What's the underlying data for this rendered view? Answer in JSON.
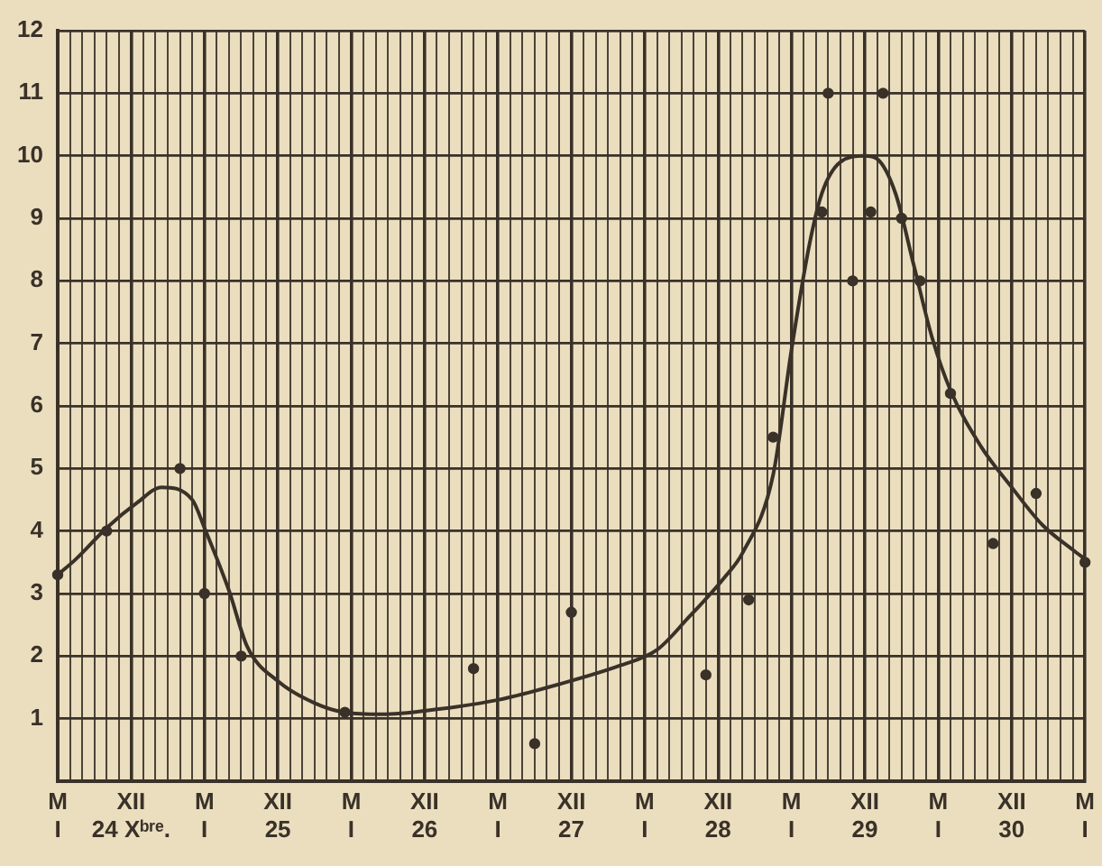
{
  "chart_data": {
    "type": "scatter",
    "series": [
      {
        "type": "scatter",
        "color": "#3a3128",
        "x": [
          "1924-06",
          "1924-10",
          "1925-04",
          "1925-06",
          "1925-09",
          "1926-05-16",
          "1927-04",
          "1927-09",
          "1927-12",
          "1928-11",
          "1929-02-15",
          "1929-04-16",
          "1929-08-16",
          "1929-09",
          "1929-11",
          "1929-12-16",
          "1930-01-16",
          "1930-03",
          "1930-04-16",
          "1930-07",
          "1930-10-16",
          "1931-02",
          "1931-06"
        ],
        "values": [
          3.3,
          4,
          5,
          3,
          2,
          1.1,
          1.8,
          0.6,
          2.7,
          1.7,
          2.9,
          5.5,
          9.1,
          11,
          8,
          9.1,
          11,
          9,
          8,
          6.2,
          3.8,
          4.6,
          3.5
        ]
      },
      {
        "type": "line",
        "marker": "none",
        "color": "#3a3128",
        "x": [
          "1924-06",
          "1924-07-16",
          "1924-10",
          "1924-12-16",
          "1925-02-15",
          "1925-05",
          "1925-06",
          "1925-08",
          "1925-09-16",
          "1925-12",
          "1926-03",
          "1926-05-16",
          "1926-08-16",
          "1927-01",
          "1927-06",
          "1927-11",
          "1928-04",
          "1928-07",
          "1928-09-16",
          "1928-12-16",
          "1929-02",
          "1929-04-16",
          "1929-06",
          "1929-07-16",
          "1929-08-16",
          "1929-10",
          "1929-12",
          "1930-01",
          "1930-02-15",
          "1930-04",
          "1930-05-16",
          "1930-07",
          "1930-09-16",
          "1930-12",
          "1931-02-15",
          "1931-05",
          "1931-06"
        ],
        "values": [
          3.3,
          3.55,
          4.05,
          4.45,
          4.7,
          4.5,
          4.05,
          3.05,
          2.15,
          1.6,
          1.25,
          1.1,
          1.07,
          1.15,
          1.3,
          1.55,
          1.85,
          2.1,
          2.6,
          3.25,
          3.65,
          4.9,
          6.9,
          8.6,
          9.4,
          9.9,
          10,
          9.95,
          9.4,
          8.25,
          7.1,
          6.25,
          5.35,
          4.7,
          4.1,
          3.7,
          3.55
        ]
      }
    ],
    "xlim": [
      "1924-06",
      "1931-06"
    ],
    "xticks": [
      {
        "value": "1924-06",
        "label": "M\nI"
      },
      {
        "value": "1924-07",
        "label": null
      },
      {
        "value": "1924-08",
        "label": null
      },
      {
        "value": "1924-09",
        "label": null
      },
      {
        "value": "1924-10",
        "label": null
      },
      {
        "value": "1924-11",
        "label": null
      },
      {
        "value": "1924-12",
        "label": "XII\n24 Xᵇʳᵉ."
      },
      {
        "value": "1925-01",
        "label": null
      },
      {
        "value": "1925-02",
        "label": null
      },
      {
        "value": "1925-03",
        "label": null
      },
      {
        "value": "1925-04",
        "label": null
      },
      {
        "value": "1925-05",
        "label": null
      },
      {
        "value": "1925-06",
        "label": "M\nI"
      },
      {
        "value": "1925-07",
        "label": null
      },
      {
        "value": "1925-08",
        "label": null
      },
      {
        "value": "1925-09",
        "label": null
      },
      {
        "value": "1925-10",
        "label": null
      },
      {
        "value": "1925-11",
        "label": null
      },
      {
        "value": "1925-12",
        "label": "XII\n25"
      },
      {
        "value": "1926-01",
        "label": null
      },
      {
        "value": "1926-02",
        "label": null
      },
      {
        "value": "1926-03",
        "label": null
      },
      {
        "value": "1926-04",
        "label": null
      },
      {
        "value": "1926-05",
        "label": null
      },
      {
        "value": "1926-06",
        "label": "M\nI"
      },
      {
        "value": "1926-07",
        "label": null
      },
      {
        "value": "1926-08",
        "label": null
      },
      {
        "value": "1926-09",
        "label": null
      },
      {
        "value": "1926-10",
        "label": null
      },
      {
        "value": "1926-11",
        "label": null
      },
      {
        "value": "1926-12",
        "label": "XII\n26"
      },
      {
        "value": "1927-01",
        "label": null
      },
      {
        "value": "1927-02",
        "label": null
      },
      {
        "value": "1927-03",
        "label": null
      },
      {
        "value": "1927-04",
        "label": null
      },
      {
        "value": "1927-05",
        "label": null
      },
      {
        "value": "1927-06",
        "label": "M\nI"
      },
      {
        "value": "1927-07",
        "label": null
      },
      {
        "value": "1927-08",
        "label": null
      },
      {
        "value": "1927-09",
        "label": null
      },
      {
        "value": "1927-10",
        "label": null
      },
      {
        "value": "1927-11",
        "label": null
      },
      {
        "value": "1927-12",
        "label": "XII\n27"
      },
      {
        "value": "1928-01",
        "label": null
      },
      {
        "value": "1928-02",
        "label": null
      },
      {
        "value": "1928-03",
        "label": null
      },
      {
        "value": "1928-04",
        "label": null
      },
      {
        "value": "1928-05",
        "label": null
      },
      {
        "value": "1928-06",
        "label": "M\nI"
      },
      {
        "value": "1928-07",
        "label": null
      },
      {
        "value": "1928-08",
        "label": null
      },
      {
        "value": "1928-09",
        "label": null
      },
      {
        "value": "1928-10",
        "label": null
      },
      {
        "value": "1928-11",
        "label": null
      },
      {
        "value": "1928-12",
        "label": "XII\n28"
      },
      {
        "value": "1929-01",
        "label": null
      },
      {
        "value": "1929-02",
        "label": null
      },
      {
        "value": "1929-03",
        "label": null
      },
      {
        "value": "1929-04",
        "label": null
      },
      {
        "value": "1929-05",
        "label": null
      },
      {
        "value": "1929-06",
        "label": "M\nI"
      },
      {
        "value": "1929-07",
        "label": null
      },
      {
        "value": "1929-08",
        "label": null
      },
      {
        "value": "1929-09",
        "label": null
      },
      {
        "value": "1929-10",
        "label": null
      },
      {
        "value": "1929-11",
        "label": null
      },
      {
        "value": "1929-12",
        "label": "XII\n29"
      },
      {
        "value": "1930-01",
        "label": null
      },
      {
        "value": "1930-02",
        "label": null
      },
      {
        "value": "1930-03",
        "label": null
      },
      {
        "value": "1930-04",
        "label": null
      },
      {
        "value": "1930-05",
        "label": null
      },
      {
        "value": "1930-06",
        "label": "M\nI"
      },
      {
        "value": "1930-07",
        "label": null
      },
      {
        "value": "1930-08",
        "label": null
      },
      {
        "value": "1930-09",
        "label": null
      },
      {
        "value": "1930-10",
        "label": null
      },
      {
        "value": "1930-11",
        "label": null
      },
      {
        "value": "1930-12",
        "label": "XII\n30"
      },
      {
        "value": "1931-01",
        "label": null
      },
      {
        "value": "1931-02",
        "label": null
      },
      {
        "value": "1931-03",
        "label": null
      },
      {
        "value": "1931-04",
        "label": null
      },
      {
        "value": "1931-05",
        "label": null
      },
      {
        "value": "1931-06",
        "label": "M\nI"
      }
    ],
    "ylim": [
      0,
      12
    ],
    "yticks": [
      {
        "value": 0,
        "label": null
      },
      1,
      2,
      3,
      4,
      5,
      6,
      7,
      8,
      9,
      10,
      11,
      12
    ],
    "grid": true,
    "marker": "circle"
  }
}
